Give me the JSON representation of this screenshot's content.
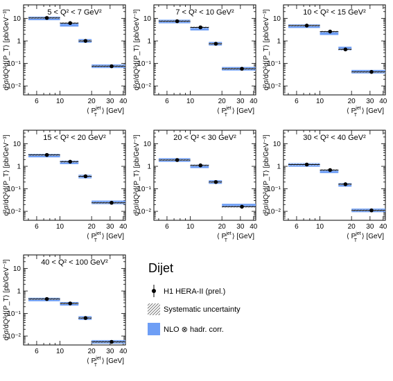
{
  "chart_data": {
    "type": "scatter",
    "x_axis": {
      "label_prefix": "⟨ P",
      "label_sup": "jet",
      "label_sub": "T",
      "label_suffix": " ⟩ [GeV]",
      "scale": "log",
      "range": [
        4.5,
        42
      ],
      "ticks": [
        {
          "v": 6,
          "label": "6"
        },
        {
          "v": 10,
          "label": "10"
        },
        {
          "v": 20,
          "label": "20"
        },
        {
          "v": 30,
          "label": "30"
        },
        {
          "v": 40,
          "label": "40"
        }
      ]
    },
    "y_axis": {
      "label": "d²σ/dQ²d⟨P_T⟩ [pb/GeV⁻³]",
      "scale": "log",
      "range": [
        0.004,
        40
      ],
      "ticks": [
        {
          "v": 0.01,
          "label": "10⁻²"
        },
        {
          "v": 0.1,
          "label": "10⁻¹"
        },
        {
          "v": 1,
          "label": "1"
        },
        {
          "v": 10,
          "label": "10"
        }
      ]
    },
    "bins": [
      {
        "lo": 5,
        "hi": 10,
        "center": 7.5
      },
      {
        "lo": 10,
        "hi": 15,
        "center": 12.5
      },
      {
        "lo": 15,
        "hi": 20,
        "center": 17.5
      },
      {
        "lo": 20,
        "hi": 42,
        "center": 31
      }
    ],
    "panels": [
      {
        "title": "5 < Q² <  7 GeV²",
        "data": [
          10.5,
          6.2,
          1.0,
          0.075
        ],
        "nlo": [
          10.0,
          5.2,
          1.0,
          0.075
        ]
      },
      {
        "title": "7 < Q² <  10 GeV²",
        "data": [
          7.5,
          4.0,
          0.75,
          0.058
        ],
        "nlo": [
          7.3,
          3.5,
          0.75,
          0.058
        ]
      },
      {
        "title": "10 < Q² <  15 GeV²",
        "data": [
          4.8,
          2.6,
          0.42,
          0.042
        ],
        "nlo": [
          4.5,
          2.2,
          0.46,
          0.043
        ]
      },
      {
        "title": "15 < Q² <  20 GeV²",
        "data": [
          3.2,
          1.6,
          0.36,
          0.024
        ],
        "nlo": [
          3.0,
          1.5,
          0.35,
          0.025
        ]
      },
      {
        "title": "20 < Q² <  30 GeV²",
        "data": [
          1.9,
          1.1,
          0.2,
          0.016
        ],
        "nlo": [
          1.9,
          1.0,
          0.2,
          0.018
        ]
      },
      {
        "title": "30 < Q² <  40 GeV²",
        "data": [
          1.2,
          0.68,
          0.16,
          0.011
        ],
        "nlo": [
          1.15,
          0.6,
          0.15,
          0.011
        ]
      },
      {
        "title": "40 < Q² < 100 GeV²",
        "data": [
          0.44,
          0.28,
          0.063,
          0.0055
        ],
        "nlo": [
          0.42,
          0.27,
          0.063,
          0.0055
        ]
      }
    ],
    "legend": {
      "title": "Dijet",
      "items": [
        {
          "label": "H1 HERA-II (prel.)",
          "kind": "data"
        },
        {
          "label": "Systematic uncertainty",
          "kind": "syst"
        },
        {
          "label": "NLO ⊗ hadr. corr.",
          "kind": "nlo"
        }
      ]
    },
    "colors": {
      "nlo_band": "#6e9ef5",
      "marker": "#000000",
      "hatch": "#4a4a4a"
    }
  }
}
